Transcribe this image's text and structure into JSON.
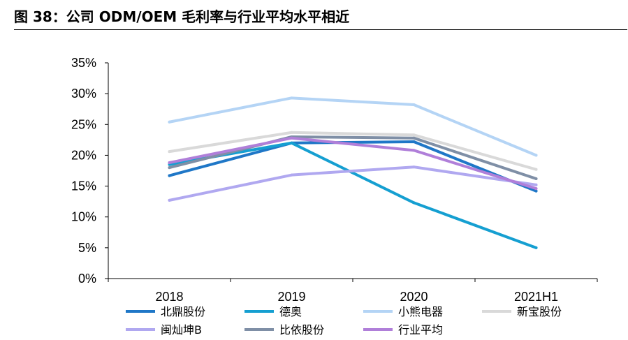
{
  "figure": {
    "title": "图 38：公司 ODM/OEM 毛利率与行业平均水平相近"
  },
  "chart_data": {
    "type": "line",
    "title": "图 38：公司 ODM/OEM 毛利率与行业平均水平相近",
    "xlabel": "",
    "ylabel": "",
    "categories": [
      "2018",
      "2019",
      "2020",
      "2021H1"
    ],
    "ylim": [
      0,
      35
    ],
    "yticks": [
      0,
      5,
      10,
      15,
      20,
      25,
      30,
      35
    ],
    "ytick_labels": [
      "0%",
      "5%",
      "10%",
      "15%",
      "20%",
      "25%",
      "30%",
      "35%"
    ],
    "grid": false,
    "legend_position": "bottom",
    "series": [
      {
        "name": "北鼎股份",
        "color": "#1f77c7",
        "values": [
          16.7,
          22.0,
          22.2,
          14.2
        ]
      },
      {
        "name": "德奥",
        "color": "#159fd1",
        "values": [
          18.5,
          22.0,
          12.3,
          5.0
        ]
      },
      {
        "name": "小熊电器",
        "color": "#b4d4f5",
        "values": [
          25.4,
          29.3,
          28.2,
          20.0
        ]
      },
      {
        "name": "新宝股份",
        "color": "#d9d9d9",
        "values": [
          20.6,
          23.7,
          23.3,
          17.7
        ]
      },
      {
        "name": "闽灿坤B",
        "color": "#b0a8f0",
        "values": [
          12.7,
          16.8,
          18.1,
          15.2
        ]
      },
      {
        "name": "比依股份",
        "color": "#7f8fa6",
        "values": [
          18.0,
          23.0,
          22.8,
          16.2
        ]
      },
      {
        "name": "行业平均",
        "color": "#b07fd9",
        "values": [
          18.8,
          22.8,
          20.8,
          14.6
        ]
      }
    ]
  }
}
